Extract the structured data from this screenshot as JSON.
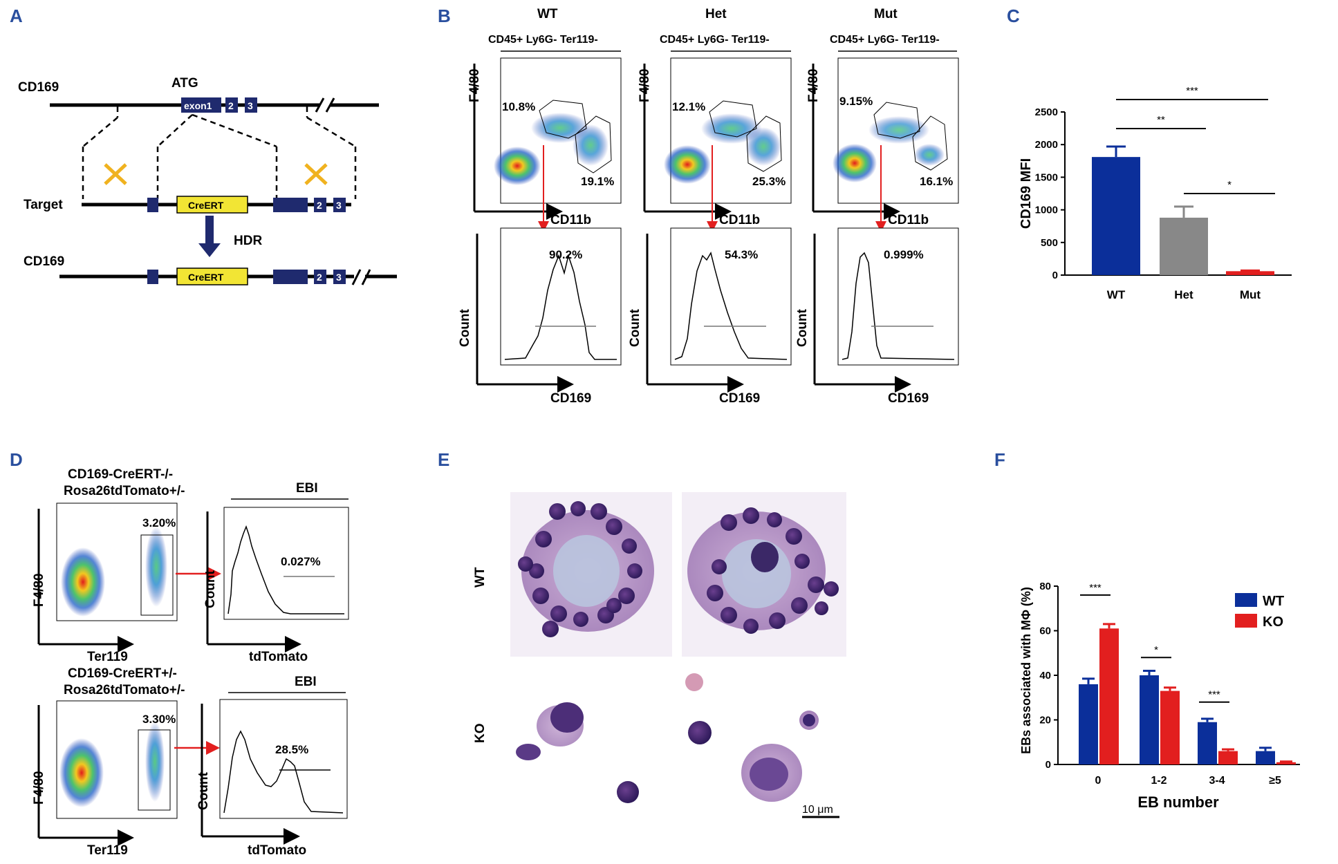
{
  "panels": {
    "A": "A",
    "B": "B",
    "C": "C",
    "D": "D",
    "E": "E",
    "F": "F"
  },
  "panel_a": {
    "gene_label": "CD169",
    "atg": "ATG",
    "exon1": "exon1",
    "exon2": "2",
    "exon3": "3",
    "target_label": "Target",
    "creert": "CreERT",
    "hdr": "HDR",
    "result_label": "CD169"
  },
  "panel_b": {
    "columns": [
      {
        "genotype": "WT",
        "gate": "CD45+ Ly6G- Ter119-",
        "pct_upper": "10.8%",
        "pct_lower": "19.1%",
        "hist_pct": "90.2%"
      },
      {
        "genotype": "Het",
        "gate": "CD45+ Ly6G- Ter119-",
        "pct_upper": "12.1%",
        "pct_lower": "25.3%",
        "hist_pct": "54.3%"
      },
      {
        "genotype": "Mut",
        "gate": "CD45+ Ly6G- Ter119-",
        "pct_upper": "9.15%",
        "pct_lower": "16.1%",
        "hist_pct": "0.999%"
      }
    ],
    "dot_ylabel": "F4/80",
    "dot_xlabel": "CD11b",
    "hist_ylabel": "Count",
    "hist_xlabel": "CD169"
  },
  "panel_d": {
    "rows": [
      {
        "title1": "CD169-CreERT-/-",
        "title2": "Rosa26tdTomato+/-",
        "gate_pct": "3.20%",
        "ebi": "EBI",
        "hist_pct": "0.027%"
      },
      {
        "title1": "CD169-CreERT+/-",
        "title2": "Rosa26tdTomato+/-",
        "gate_pct": "3.30%",
        "ebi": "EBI",
        "hist_pct": "28.5%"
      }
    ],
    "dot_ylabel": "F4/80",
    "dot_xlabel": "Ter119",
    "hist_ylabel": "Count",
    "hist_xlabel": "tdTomato"
  },
  "panel_e": {
    "row1": "WT",
    "row2": "KO",
    "scale": "10 μm"
  },
  "colors": {
    "blue": "#0b2f9a",
    "red": "#e21f1f",
    "gray": "#888888",
    "navy": "#1f2a6e",
    "yellow": "#f2e534",
    "orange": "#f0b21f"
  },
  "chart_data": [
    {
      "type": "bar",
      "id": "C",
      "ylabel": "CD169 MFI",
      "categories": [
        "WT",
        "Het",
        "Mut"
      ],
      "values": [
        1810,
        880,
        60
      ],
      "errors": [
        160,
        170,
        10
      ],
      "ylim": [
        0,
        2500
      ],
      "yticks": [
        "0",
        "500",
        "1000",
        "1500",
        "2000",
        "2500"
      ],
      "significance": [
        "***",
        "**",
        "*"
      ]
    },
    {
      "type": "bar",
      "id": "F",
      "ylabel": "EBs associated with MΦ (%)",
      "xlabel": "EB number",
      "categories": [
        "0",
        "1-2",
        "3-4",
        "≥5"
      ],
      "series": [
        {
          "name": "WT",
          "values": [
            36,
            40,
            19,
            6
          ],
          "errors": [
            2.5,
            2,
            1.5,
            1.5
          ]
        },
        {
          "name": "KO",
          "values": [
            61,
            33,
            6,
            1
          ],
          "errors": [
            2,
            1.5,
            0.8,
            0.3
          ]
        }
      ],
      "ylim": [
        0,
        80
      ],
      "yticks": [
        "0",
        "20",
        "40",
        "60",
        "80"
      ],
      "significance": [
        "***",
        "*",
        "***"
      ]
    }
  ]
}
